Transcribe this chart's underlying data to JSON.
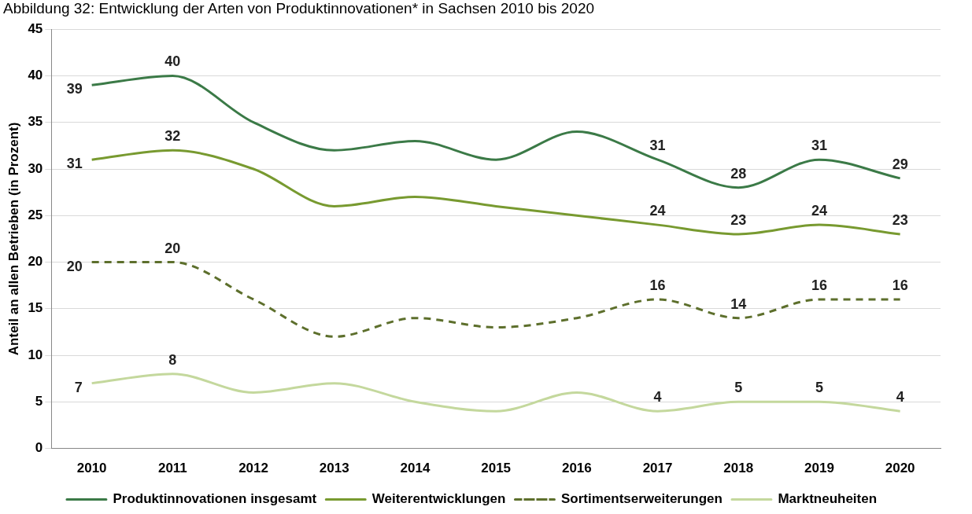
{
  "chart_data": {
    "type": "line",
    "title": "Abbildung 32: Entwicklung der Arten von Produktinnovationen* in Sachsen 2010 bis 2020",
    "ylabel": "Anteil an allen Betrieben (in Prozent)",
    "categories": [
      "2010",
      "2011",
      "2012",
      "2013",
      "2014",
      "2015",
      "2016",
      "2017",
      "2018",
      "2019",
      "2020"
    ],
    "series": [
      {
        "name": "Produktinnovationen insgesamt",
        "color": "#3b7a47",
        "values": [
          39,
          40,
          35,
          32,
          33,
          31,
          34,
          31,
          28,
          31,
          29
        ],
        "value_labels": [
          "39",
          "40",
          null,
          null,
          null,
          null,
          null,
          "31",
          "28",
          "31",
          "29"
        ]
      },
      {
        "name": "Weiterentwicklungen",
        "color": "#789a30",
        "values": [
          31,
          32,
          30,
          26,
          27,
          26,
          25,
          24,
          23,
          24,
          23
        ],
        "value_labels": [
          "31",
          "32",
          null,
          null,
          null,
          null,
          null,
          "24",
          "23",
          "24",
          "23"
        ]
      },
      {
        "name": "Sortimentserweiterungen",
        "color": "#5d6f2c",
        "line_style": "dashed",
        "values": [
          20,
          20,
          16,
          12,
          14,
          13,
          14,
          16,
          14,
          16,
          16
        ],
        "value_labels": [
          "20",
          "20",
          null,
          null,
          null,
          null,
          null,
          "16",
          "14",
          "16",
          "16"
        ]
      },
      {
        "name": "Marktneuheiten",
        "color": "#c4d89d",
        "values": [
          7,
          8,
          6,
          7,
          5,
          4,
          6,
          4,
          5,
          5,
          4
        ],
        "value_labels": [
          "7",
          "8",
          null,
          null,
          null,
          null,
          null,
          "4",
          "5",
          "5",
          "4"
        ]
      }
    ],
    "ylim": [
      0,
      45
    ],
    "yticks": [
      0,
      5,
      10,
      15,
      20,
      25,
      30,
      35,
      40,
      45
    ],
    "grid": "y",
    "legend": "bottom",
    "marker": "none",
    "line_style": "solid"
  }
}
